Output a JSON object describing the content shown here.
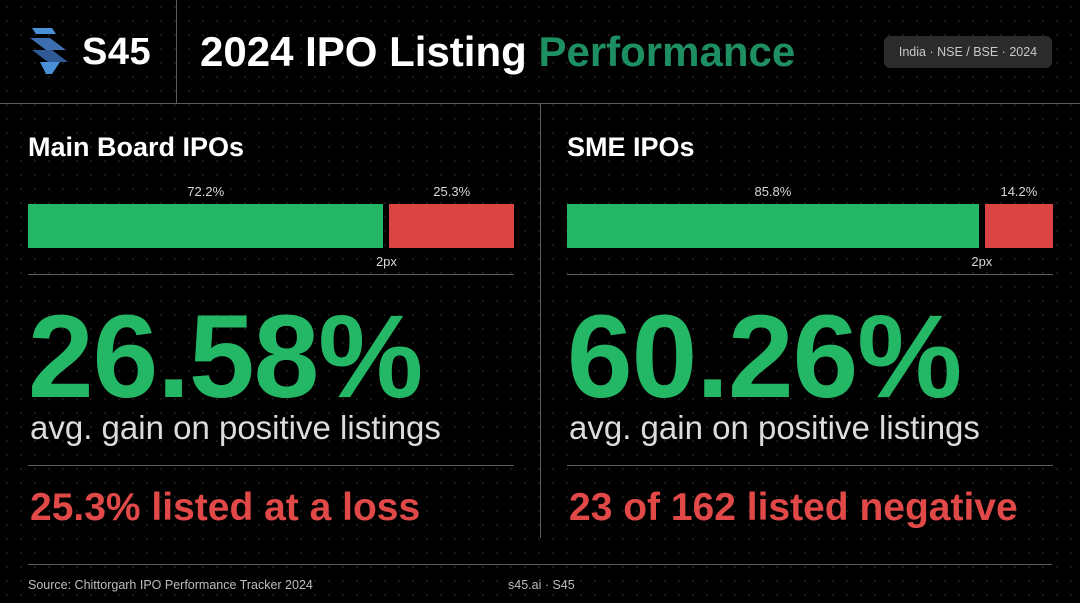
{
  "header": {
    "brand": "S45",
    "title_main": "2024 IPO Listing ",
    "title_accent": "Performance",
    "badge": "India · NSE / BSE · 2024",
    "colors": {
      "accent": "#1e8f62",
      "positive": "#24b866",
      "negative": "#dc4444"
    }
  },
  "chart_data": [
    {
      "type": "bar",
      "title": "Main Board IPOs",
      "series": [
        {
          "value": 72.2,
          "label": "72.2%",
          "color": "#24b866"
        },
        {
          "value": 25.3,
          "label": "25.3%",
          "color": "#dc4444"
        }
      ],
      "gap_label": "2px",
      "big_stat": "26.58%",
      "big_stat_caption": "avg. gain on positive listings",
      "loss_text": "25.3% listed at a loss"
    },
    {
      "type": "bar",
      "title": "SME IPOs",
      "series": [
        {
          "value": 85.8,
          "label": "85.8%",
          "color": "#24b866"
        },
        {
          "value": 14.2,
          "label": "14.2%",
          "color": "#dc4444"
        }
      ],
      "gap_label": "2px",
      "big_stat": "60.26%",
      "big_stat_caption": "avg. gain on positive listings",
      "loss_text": "23 of 162 listed negative"
    }
  ],
  "footer": {
    "source": "Source: Chittorgarh IPO Performance Tracker 2024",
    "credit": "s45.ai · S45"
  }
}
